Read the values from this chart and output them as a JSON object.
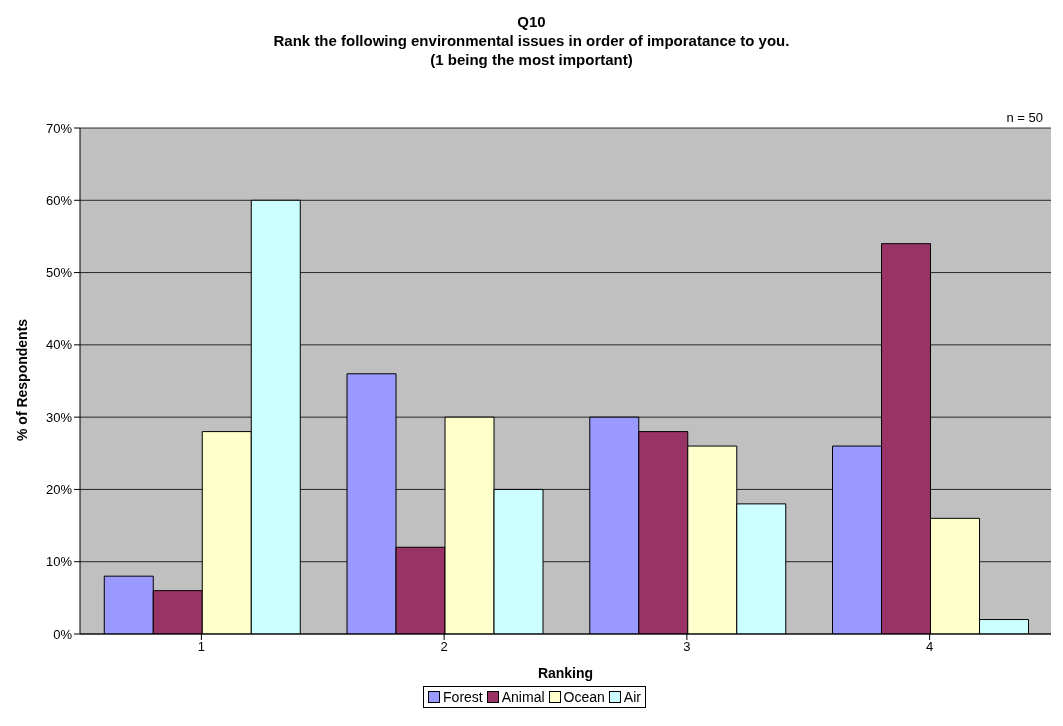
{
  "chart_data": {
    "type": "bar",
    "title": "Q10\nRank the following environmental issues in order of imporatance to you.\n(1 being the most important)",
    "xlabel": "Ranking",
    "ylabel": "% of Respondents",
    "categories": [
      "1",
      "2",
      "3",
      "4"
    ],
    "series": [
      {
        "name": "Forest",
        "color": "#9999ff",
        "values": [
          8,
          36,
          30,
          26
        ]
      },
      {
        "name": "Animal",
        "color": "#993366",
        "values": [
          6,
          12,
          28,
          54
        ]
      },
      {
        "name": "Ocean",
        "color": "#ffffcc",
        "values": [
          28,
          30,
          26,
          16
        ]
      },
      {
        "name": "Air",
        "color": "#ccffff",
        "values": [
          60,
          20,
          18,
          2
        ]
      }
    ],
    "ylim": [
      0,
      70
    ],
    "yticks": [
      {
        "value": 0,
        "label": "0%"
      },
      {
        "value": 10,
        "label": "10%"
      },
      {
        "value": 20,
        "label": "20%"
      },
      {
        "value": 30,
        "label": "30%"
      },
      {
        "value": 40,
        "label": "40%"
      },
      {
        "value": 50,
        "label": "50%"
      },
      {
        "value": 60,
        "label": "60%"
      },
      {
        "value": 70,
        "label": "70%"
      }
    ],
    "annotations": [
      "n = 50"
    ],
    "grid": "y",
    "legend": "bottom"
  }
}
